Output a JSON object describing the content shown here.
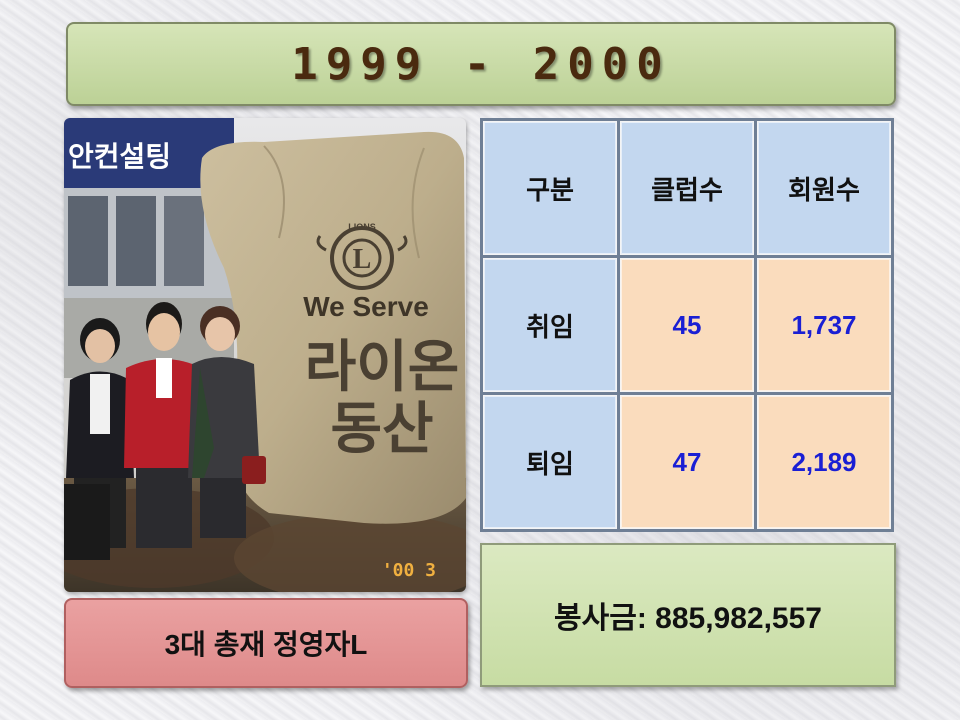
{
  "title": "1999  -  2000",
  "photo": {
    "sign_text": "안컨설팅",
    "emblem_text": "LIONS",
    "motto": "We Serve",
    "stone_line1": "라이온",
    "stone_line2": "동산",
    "date_stamp": "'00  3"
  },
  "table": {
    "headers": [
      "구분",
      "클럽수",
      "회원수"
    ],
    "rows": [
      {
        "label": "취임",
        "clubs": "45",
        "members": "1,737"
      },
      {
        "label": "퇴임",
        "clubs": "47",
        "members": "2,189"
      }
    ]
  },
  "caption": "3대 총재 정영자L",
  "fund": "봉사금: 885,982,557"
}
